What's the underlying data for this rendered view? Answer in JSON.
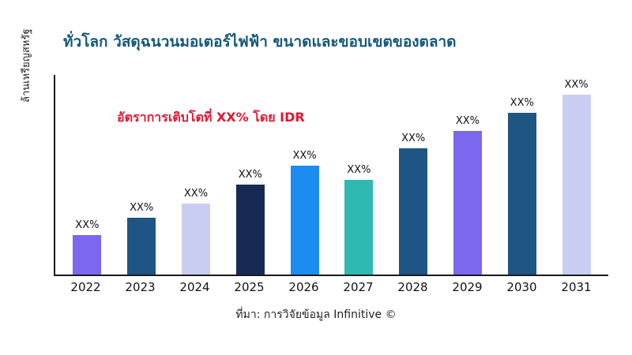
{
  "title": "ทั่วโลก วัสดุฉนวนมอเตอร์ไฟฟ้า ขนาดและขอบเขตของตลาด",
  "annotation": "อัตราการเติบโตที่ XX% โดย IDR",
  "source": "ที่มา: การวิจัยข้อมูล Infinitive ©",
  "colors": {
    "title": "#14587a",
    "annotation": "#e11931",
    "axis": "#1a1a1a"
  },
  "chart_data": {
    "type": "bar",
    "title": "ทั่วโลก วัสดุฉนวนมอเตอร์ไฟฟ้า ขนาดและขอบเขตของตลาด",
    "xlabel": "",
    "ylabel": "ล้านเหรียญสหรัฐ",
    "categories": [
      "2022",
      "2023",
      "2024",
      "2025",
      "2026",
      "2027",
      "2028",
      "2029",
      "2030",
      "2031"
    ],
    "values": [
      50,
      72,
      90,
      114,
      138,
      120,
      160,
      182,
      205,
      228
    ],
    "bar_labels": [
      "XX%",
      "XX%",
      "XX%",
      "XX%",
      "XX%",
      "XX%",
      "XX%",
      "XX%",
      "XX%",
      "XX%"
    ],
    "colors": [
      "#7b68ee",
      "#1f5582",
      "#c9cdf2",
      "#172a54",
      "#1b8cf0",
      "#30b8b2",
      "#1f5582",
      "#7b68ee",
      "#1f5582",
      "#c9cdf2"
    ],
    "ylim": [
      0,
      255
    ],
    "grid": false,
    "legend": "none",
    "annotation": "อัตราการเติบโตที่ XX% โดย IDR",
    "value_note": "values are relative bar heights estimated from pixels; actual figures masked as XX% in source image"
  }
}
